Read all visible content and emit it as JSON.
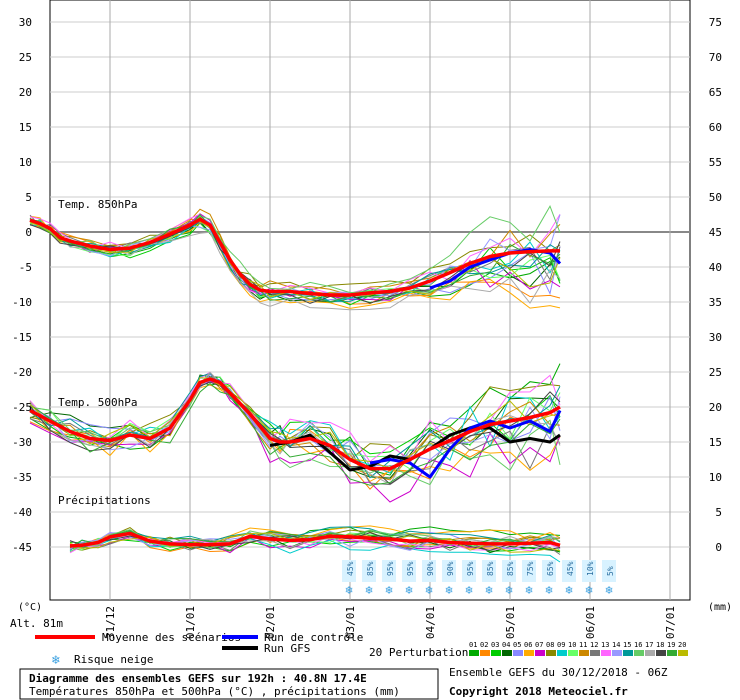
{
  "chart_data": {
    "type": "line",
    "x_labels": [
      "31/12",
      "01/01",
      "02/01",
      "03/01",
      "04/01",
      "05/01",
      "06/01",
      "07/01"
    ],
    "left_axis": {
      "unit": "(°C)",
      "ticks": [
        30,
        25,
        20,
        15,
        10,
        5,
        0,
        -5,
        -10,
        -15,
        -20,
        -25,
        -30,
        -35,
        -40,
        -45
      ]
    },
    "right_axis": {
      "unit": "(mm)",
      "ticks": [
        75,
        70,
        65,
        60,
        55,
        50,
        45,
        40,
        35,
        30,
        25,
        20,
        15,
        10,
        5,
        0
      ]
    },
    "panel_labels": {
      "t850": "Temp. 850hPa",
      "t500": "Temp. 500hPa",
      "precip": "Précipitations"
    },
    "altitude": "Alt. 81m",
    "snow_risk": [
      "45%",
      "85%",
      "95%",
      "95%",
      "90%",
      "90%",
      "95%",
      "85%",
      "85%",
      "75%",
      "65%",
      "45%",
      "10%",
      "5%"
    ],
    "series": {
      "mean_t850": {
        "name": "Moyenne des scénarios",
        "color": "#ff0000",
        "values": [
          [
            0.0,
            1.7
          ],
          [
            0.25,
            1.2
          ],
          [
            0.5,
            0.5
          ],
          [
            0.75,
            -0.8
          ],
          [
            1.0,
            -1.3
          ],
          [
            1.5,
            -2.0
          ],
          [
            2.0,
            -2.5
          ],
          [
            2.5,
            -2.3
          ],
          [
            3.0,
            -1.5
          ],
          [
            3.5,
            -0.3
          ],
          [
            4.0,
            1.0
          ],
          [
            4.25,
            1.8
          ],
          [
            4.5,
            1.0
          ],
          [
            4.75,
            -1.5
          ],
          [
            5.0,
            -4.0
          ],
          [
            5.25,
            -6.0
          ],
          [
            5.5,
            -7.5
          ],
          [
            5.75,
            -8.3
          ],
          [
            6.0,
            -8.5
          ],
          [
            6.5,
            -8.5
          ],
          [
            7.0,
            -8.8
          ],
          [
            7.5,
            -9.0
          ],
          [
            8.0,
            -9.0
          ],
          [
            8.5,
            -8.7
          ],
          [
            9.0,
            -8.5
          ],
          [
            9.5,
            -8.0
          ],
          [
            10.0,
            -7.0
          ],
          [
            10.5,
            -5.8
          ],
          [
            11.0,
            -4.5
          ],
          [
            11.5,
            -3.5
          ],
          [
            12.0,
            -3.0
          ],
          [
            12.5,
            -2.8
          ],
          [
            13.0,
            -2.7
          ],
          [
            13.25,
            -2.7
          ]
        ]
      },
      "mean_t500": {
        "name": "Moyenne des scénarios",
        "color": "#ff0000",
        "values": [
          [
            0.0,
            -25.5
          ],
          [
            0.5,
            -27.0
          ],
          [
            1.0,
            -28.5
          ],
          [
            1.5,
            -29.5
          ],
          [
            2.0,
            -29.8
          ],
          [
            2.5,
            -29.0
          ],
          [
            3.0,
            -29.5
          ],
          [
            3.5,
            -28.0
          ],
          [
            4.0,
            -24.0
          ],
          [
            4.25,
            -21.5
          ],
          [
            4.5,
            -21.0
          ],
          [
            4.75,
            -21.5
          ],
          [
            5.0,
            -23.0
          ],
          [
            5.5,
            -26.0
          ],
          [
            6.0,
            -29.5
          ],
          [
            6.25,
            -30.0
          ],
          [
            6.5,
            -30.0
          ],
          [
            7.0,
            -29.5
          ],
          [
            7.5,
            -30.5
          ],
          [
            8.0,
            -32.5
          ],
          [
            8.5,
            -33.8
          ],
          [
            9.0,
            -33.8
          ],
          [
            9.5,
            -32.5
          ],
          [
            10.0,
            -31.0
          ],
          [
            10.5,
            -29.8
          ],
          [
            11.0,
            -28.5
          ],
          [
            11.5,
            -27.5
          ],
          [
            12.0,
            -27.0
          ],
          [
            12.5,
            -26.5
          ],
          [
            13.0,
            -25.8
          ],
          [
            13.25,
            -25.0
          ]
        ]
      },
      "mean_precip": {
        "name": "Moyenne des scénarios",
        "color": "#ff0000",
        "values": [
          [
            1.0,
            0
          ],
          [
            1.3,
            0.1
          ],
          [
            1.7,
            0.5
          ],
          [
            2.0,
            1.3
          ],
          [
            2.5,
            1.8
          ],
          [
            3.0,
            0.7
          ],
          [
            3.5,
            0.3
          ],
          [
            4.0,
            0.2
          ],
          [
            4.5,
            0.2
          ],
          [
            5.0,
            0.3
          ],
          [
            5.5,
            1.4
          ],
          [
            6.0,
            1.0
          ],
          [
            6.5,
            0.8
          ],
          [
            7.0,
            0.9
          ],
          [
            7.5,
            1.4
          ],
          [
            8.0,
            1.3
          ],
          [
            8.5,
            1.1
          ],
          [
            9.0,
            1.0
          ],
          [
            9.5,
            0.7
          ],
          [
            10.0,
            0.8
          ],
          [
            10.5,
            0.5
          ],
          [
            11.0,
            0.4
          ],
          [
            11.5,
            0.3
          ],
          [
            12.0,
            0.3
          ],
          [
            12.5,
            0.4
          ],
          [
            13.0,
            0.5
          ],
          [
            13.25,
            0.1
          ]
        ]
      },
      "control_t850": {
        "name": "Run de contrôle",
        "color": "#0000ff",
        "values": [
          [
            10.0,
            -8.0
          ],
          [
            10.5,
            -7.0
          ],
          [
            11.0,
            -5.0
          ],
          [
            11.5,
            -4.0
          ],
          [
            12.0,
            -3.0
          ],
          [
            12.5,
            -2.5
          ],
          [
            13.0,
            -3.0
          ],
          [
            13.25,
            -4.5
          ]
        ]
      },
      "control_t500": {
        "name": "Run de contrôle",
        "color": "#0000ff",
        "values": [
          [
            8.5,
            -33.0
          ],
          [
            9.0,
            -32.5
          ],
          [
            9.5,
            -33.0
          ],
          [
            10.0,
            -35.0
          ],
          [
            10.5,
            -31.0
          ],
          [
            11.0,
            -28.0
          ],
          [
            11.5,
            -27.0
          ],
          [
            12.0,
            -28.0
          ],
          [
            12.5,
            -27.0
          ],
          [
            13.0,
            -28.5
          ],
          [
            13.25,
            -25.5
          ]
        ]
      },
      "gfs_t500": {
        "name": "Run GFS",
        "color": "#000000",
        "values": [
          [
            6.0,
            -30.5
          ],
          [
            6.5,
            -30.0
          ],
          [
            7.0,
            -29.0
          ],
          [
            7.5,
            -31.5
          ],
          [
            8.0,
            -34.0
          ],
          [
            8.5,
            -33.5
          ],
          [
            9.0,
            -32.0
          ],
          [
            9.5,
            -32.5
          ],
          [
            10.0,
            -31.0
          ],
          [
            10.5,
            -29.0
          ],
          [
            11.0,
            -28.0
          ],
          [
            11.5,
            -28.0
          ],
          [
            12.0,
            -30.0
          ],
          [
            12.5,
            -29.5
          ],
          [
            13.0,
            -30.0
          ],
          [
            13.25,
            -29.0
          ]
        ]
      }
    },
    "perturbations_label": "20 Perturbations",
    "perturbation_numbers": [
      "01",
      "02",
      "03",
      "04",
      "05",
      "06",
      "07",
      "08",
      "09",
      "10",
      "11",
      "12",
      "13",
      "14",
      "15",
      "16",
      "17",
      "18",
      "19",
      "20"
    ],
    "perturbation_colors": [
      "#00aa00",
      "#ff8800",
      "#00cc00",
      "#006600",
      "#8888ff",
      "#ffaa00",
      "#cc00cc",
      "#888800",
      "#00cccc",
      "#66ff66",
      "#cc8800",
      "#777777",
      "#ff66ff",
      "#9999ff",
      "#009999",
      "#66cc66",
      "#aaaaaa",
      "#444444",
      "#33aa33",
      "#bbbb00"
    ]
  },
  "legend": {
    "mean": "Moyenne des scénarios",
    "control": "Run de contrôle",
    "gfs": "Run GFS",
    "snow": "Risque neige"
  },
  "footer": {
    "title": "Diagramme des ensembles GEFS sur 192h : 40.8N 17.4E",
    "subtitle": "Températures 850hPa et 500hPa (°C) , précipitations (mm)",
    "run_info": "Ensemble GEFS du 30/12/2018 - 06Z",
    "copyright": "Copyright 2018 Meteociel.fr"
  }
}
